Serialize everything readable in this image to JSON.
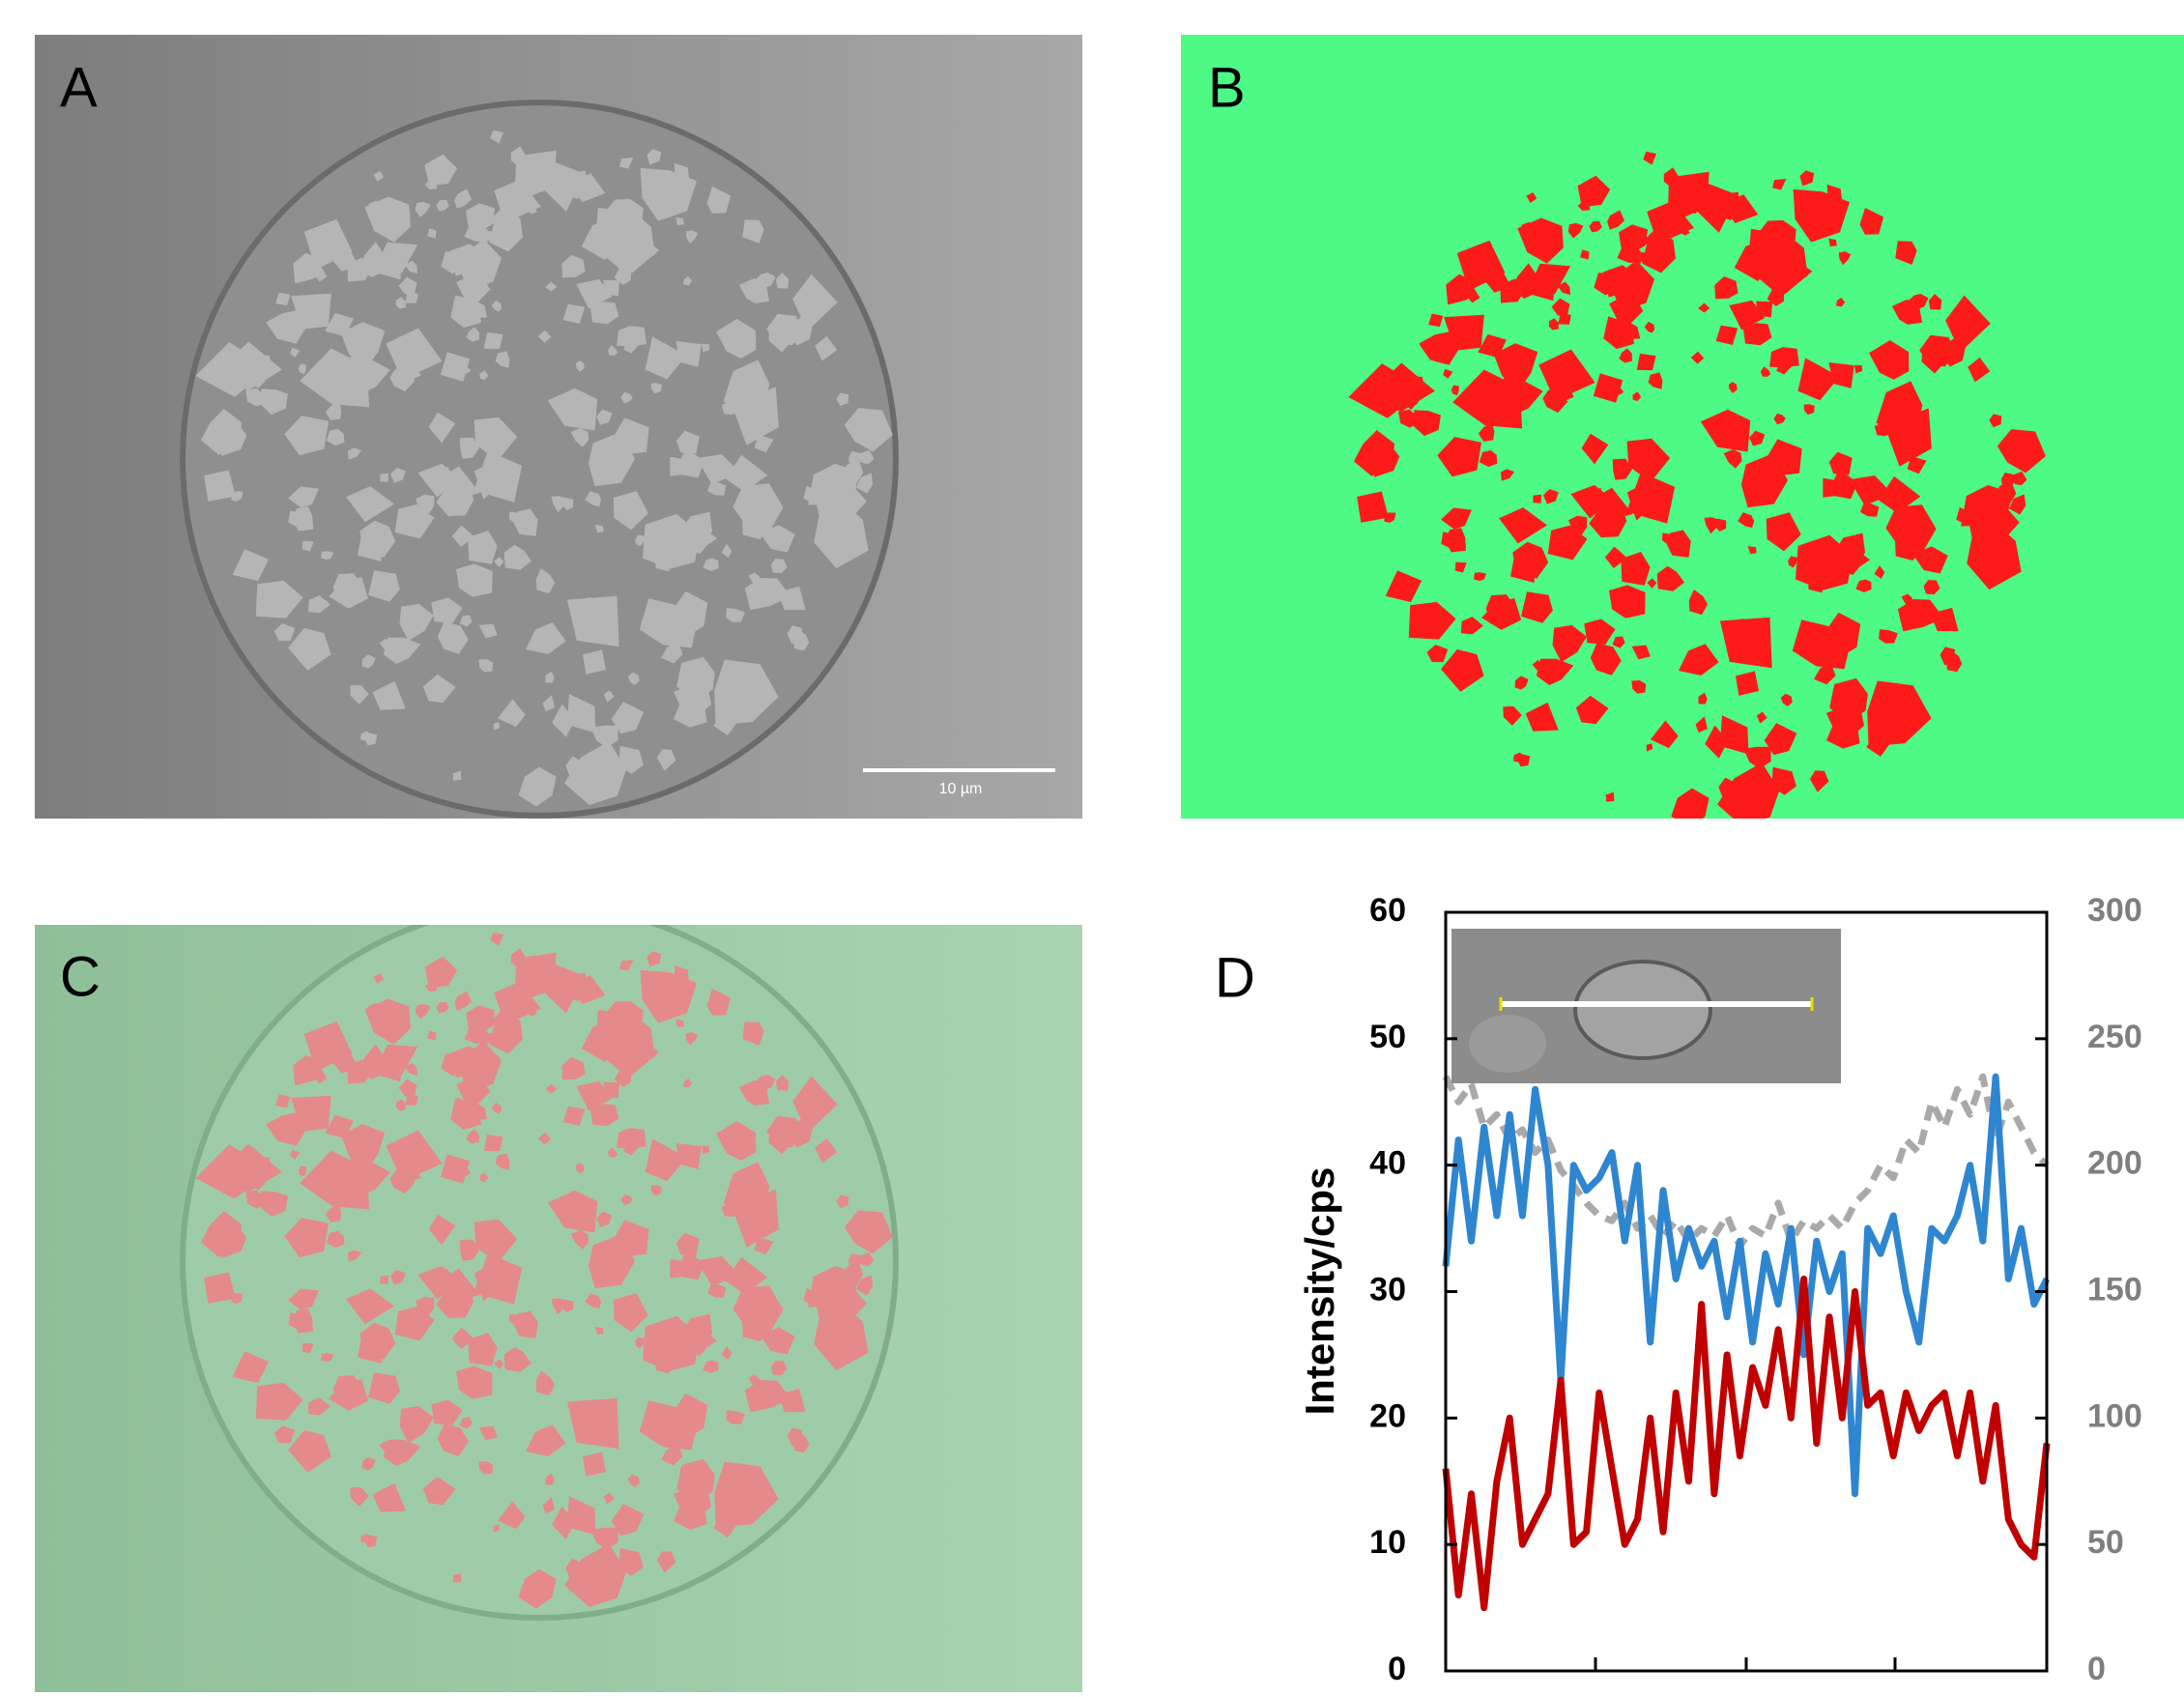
{
  "panels": {
    "a": {
      "label": "A",
      "scale_bar": "10 µm"
    },
    "b": {
      "label": "B"
    },
    "c": {
      "label": "C"
    }
  },
  "chart_data": {
    "type": "line",
    "label": "D",
    "ylabel": "Intensity/cps",
    "ylim": [
      0,
      60
    ],
    "yticks": [
      0,
      10,
      20,
      30,
      40,
      50,
      60
    ],
    "y2lim": [
      0,
      300
    ],
    "y2ticks": [
      0,
      50,
      100,
      150,
      200,
      250,
      300
    ],
    "series": [
      {
        "color": "#a9a9a9",
        "dashed": true,
        "axis": "y2",
        "values": [
          235,
          225,
          232,
          215,
          220,
          210,
          214,
          205,
          210,
          198,
          192,
          185,
          180,
          178,
          185,
          175,
          180,
          172,
          178,
          170,
          175,
          172,
          180,
          168,
          175,
          172,
          185,
          170,
          178,
          175,
          180,
          175,
          185,
          190,
          200,
          195,
          210,
          205,
          225,
          215,
          230,
          220,
          235,
          210,
          225,
          215,
          205,
          200
        ]
      },
      {
        "color": "#2e86d0",
        "values": [
          32,
          42,
          34,
          43,
          36,
          44,
          36,
          46,
          40,
          23,
          40,
          38,
          39,
          41,
          34,
          40,
          26,
          38,
          31,
          35,
          32,
          34,
          28,
          34,
          26,
          33,
          29,
          35,
          25,
          34,
          30,
          33,
          14,
          35,
          33,
          36,
          30,
          26,
          35,
          34,
          36,
          40,
          34,
          47,
          31,
          35,
          29,
          31
        ]
      },
      {
        "color": "#c00000",
        "values": [
          16,
          6,
          14,
          5,
          15,
          20,
          10,
          12,
          14,
          23,
          10,
          11,
          22,
          16,
          10,
          12,
          20,
          11,
          22,
          15,
          29,
          14,
          25,
          17,
          24,
          21,
          27,
          20,
          31,
          18,
          28,
          20,
          30,
          21,
          22,
          17,
          22,
          19,
          21,
          22,
          17,
          22,
          15,
          21,
          12,
          10,
          9,
          18
        ]
      }
    ]
  }
}
